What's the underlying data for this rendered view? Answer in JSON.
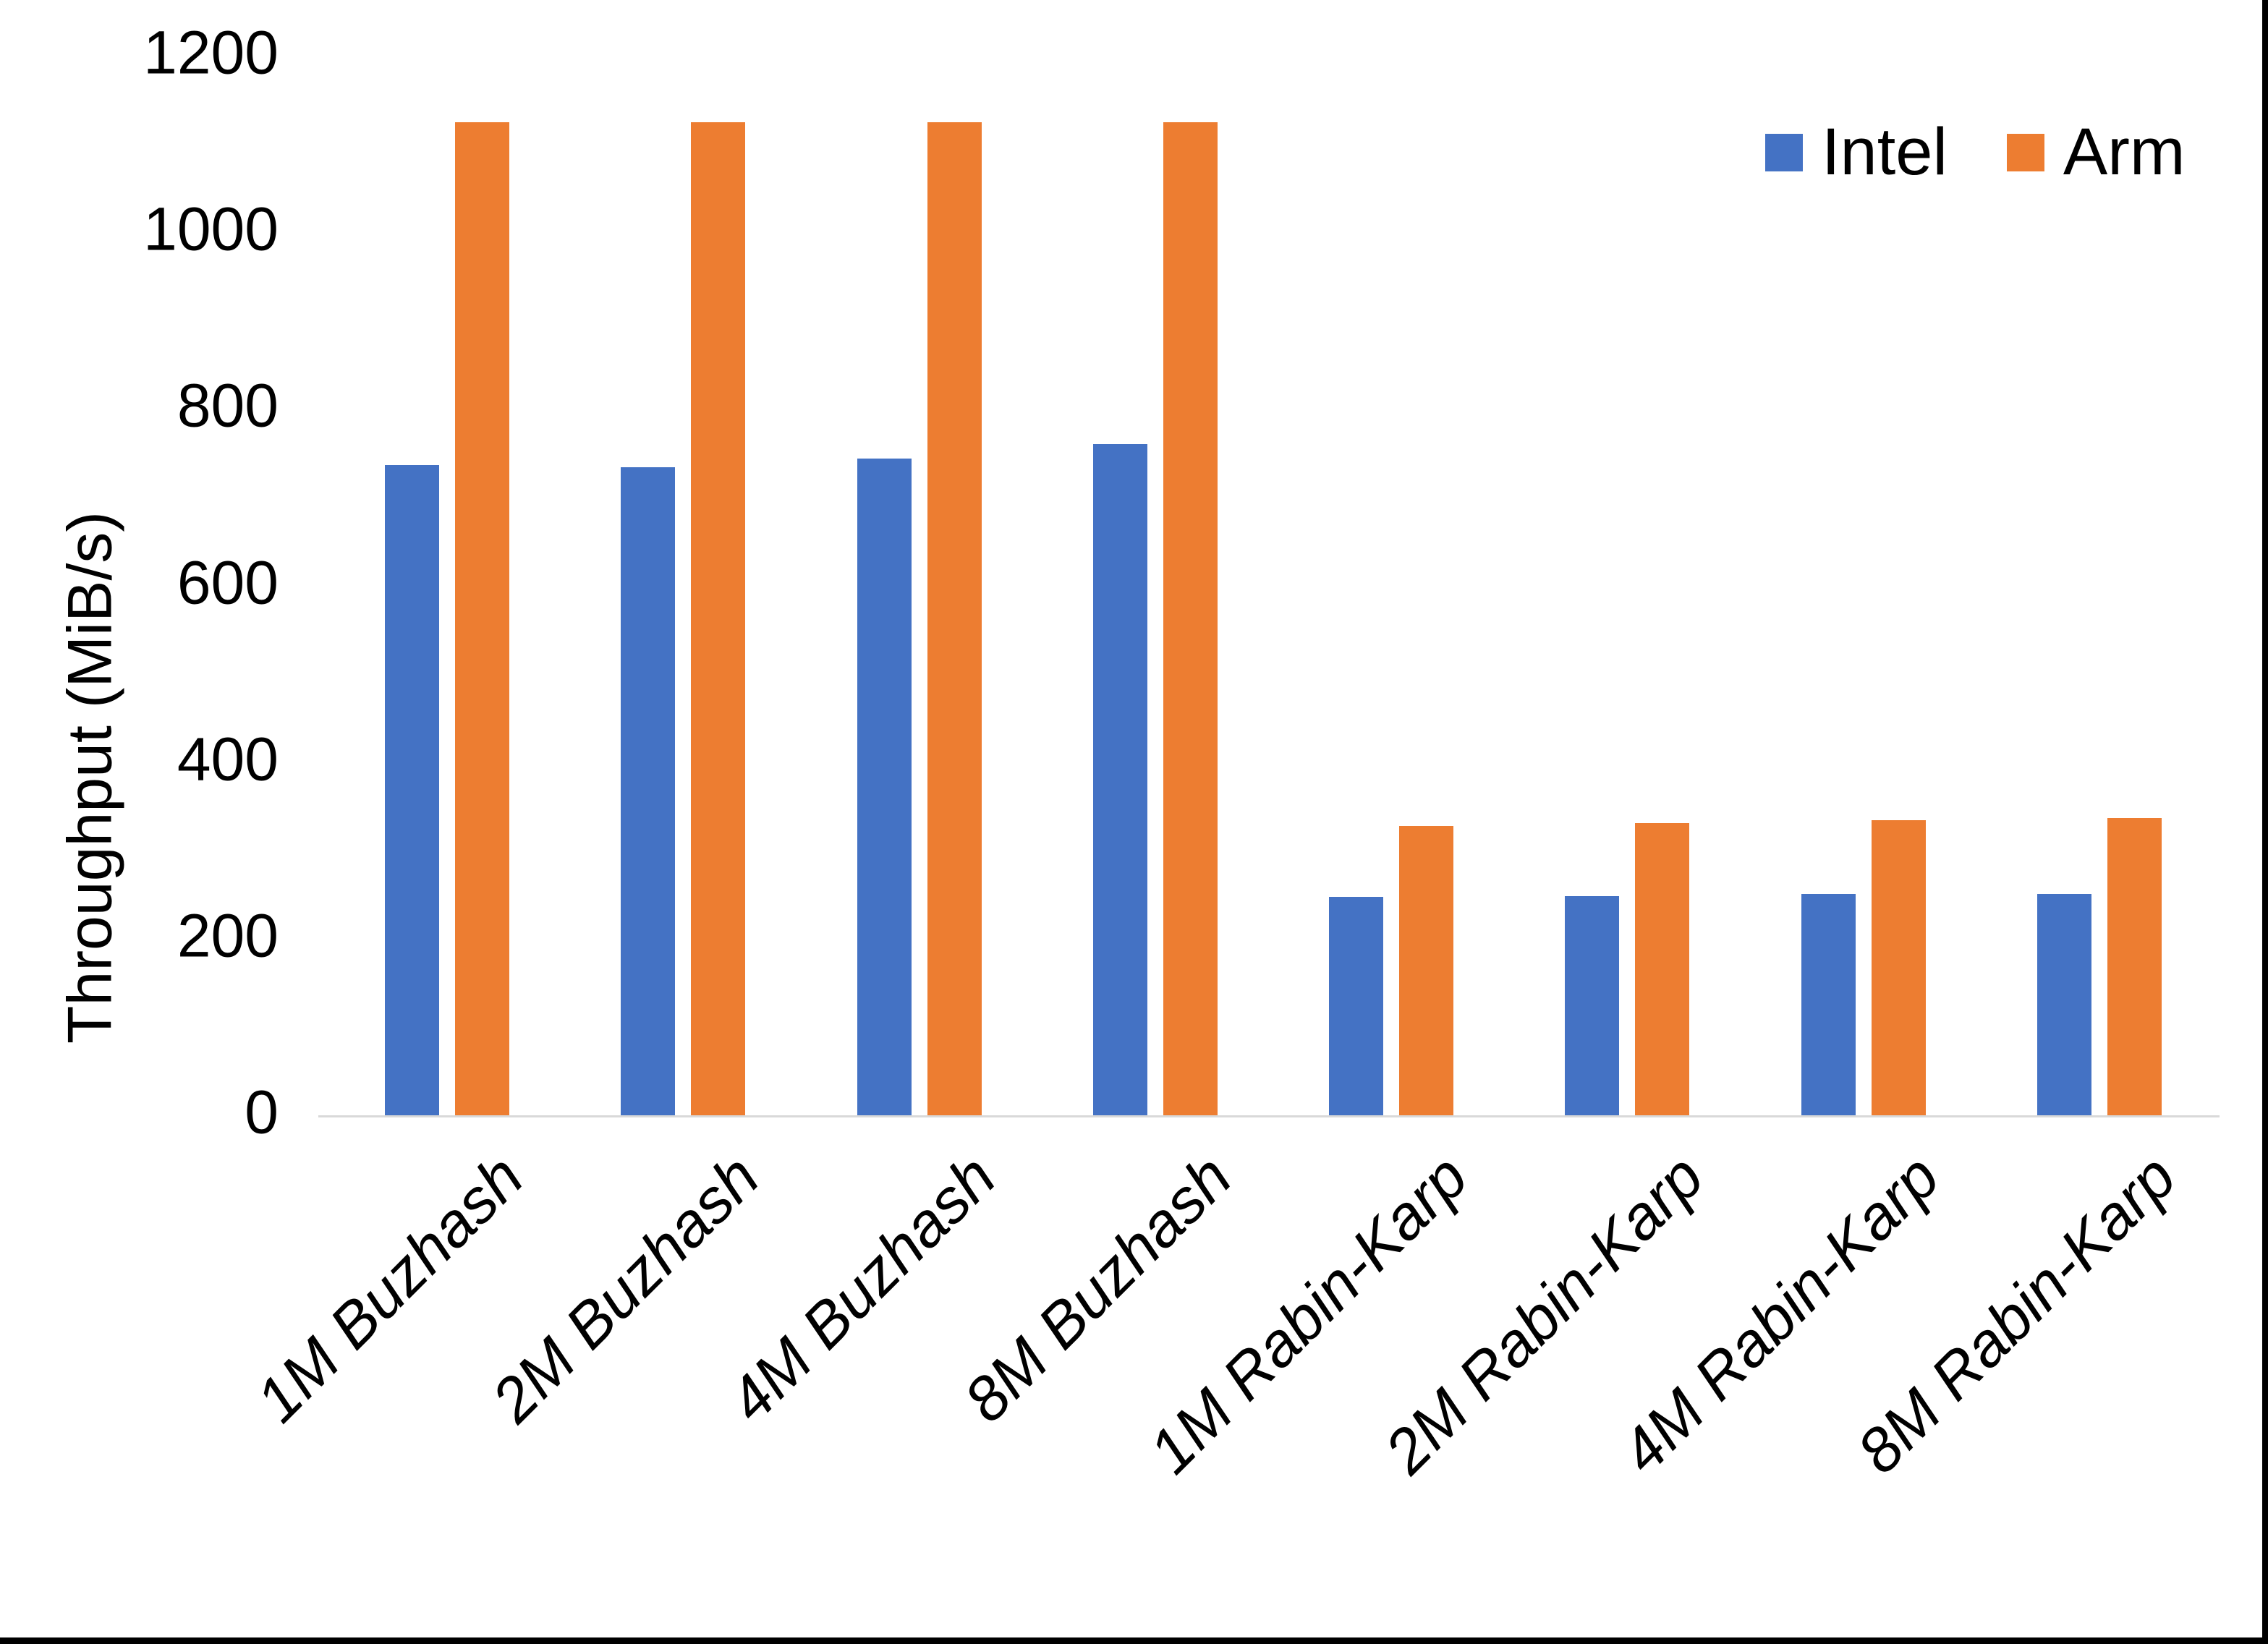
{
  "chart_data": {
    "type": "bar",
    "ylabel": "Throughput (MiB/s)",
    "xlabel": "",
    "ylim": [
      0,
      1200
    ],
    "ytick_interval": 200,
    "yticks": [
      "0",
      "200",
      "400",
      "600",
      "800",
      "1000",
      "1200"
    ],
    "categories": [
      "1M Buzhash",
      "2M Buzhash",
      "4M Buzhash",
      "8M Buzhash",
      "1M Rabin-Karp",
      "2M Rabin-Karp",
      "4M Rabin-Karp",
      "8M Rabin-Karp"
    ],
    "series": [
      {
        "name": "Intel",
        "color": "#4472C4",
        "values": [
          736,
          734,
          744,
          760,
          247,
          248,
          251,
          251
        ]
      },
      {
        "name": "Arm",
        "color": "#ED7D31",
        "values": [
          1125,
          1125,
          1125,
          1125,
          328,
          331,
          334,
          337
        ]
      }
    ],
    "legend_position": "top-right",
    "grid": false,
    "axis_line_color": "#D9D9D9"
  }
}
